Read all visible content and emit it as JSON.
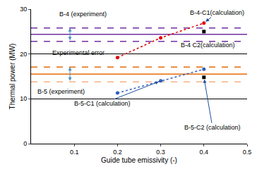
{
  "chart_data": {
    "type": "line",
    "x_label": "Guide tube emissivity (-)",
    "y_label": "Thermal power (MW)",
    "xlim": [
      0,
      0.5
    ],
    "xticks": [
      0.1,
      0.2,
      0.3,
      0.4,
      0.5
    ],
    "ylim": [
      0,
      30
    ],
    "yticks": [
      0,
      10,
      20,
      30
    ],
    "grid": true,
    "series": [
      {
        "x": [
          0,
          0.5
        ],
        "values": [
          24.4,
          24.4
        ],
        "color": "#7030a0",
        "line_style": "solid",
        "marker": "none"
      },
      {
        "x": [
          0,
          0.5
        ],
        "values": [
          25.8,
          25.8
        ],
        "color": "#7030a0",
        "line_style": "dash",
        "marker": "none"
      },
      {
        "x": [
          0,
          0.5
        ],
        "values": [
          22.8,
          22.8
        ],
        "color": "#7030a0",
        "line_style": "dash",
        "marker": "none"
      },
      {
        "x": [
          0,
          0.5
        ],
        "values": [
          15.5,
          15.5
        ],
        "color": "#e36c09",
        "line_style": "solid",
        "marker": "none"
      },
      {
        "x": [
          0,
          0.5
        ],
        "values": [
          17.1,
          17.1
        ],
        "color": "#e36c09",
        "line_style": "dash",
        "marker": "none"
      },
      {
        "x": [
          0,
          0.5
        ],
        "values": [
          13.8,
          13.8
        ],
        "color": "#f4b183",
        "line_style": "dash",
        "marker": "none"
      },
      {
        "x": [
          0.2,
          0.3,
          0.4
        ],
        "values": [
          19.2,
          23.6,
          26.9
        ],
        "color": "#e00000",
        "line_style": "dot",
        "marker": "circle"
      },
      {
        "x": [
          0.4
        ],
        "values": [
          25.0
        ],
        "color": "#000000",
        "line_style": "none",
        "marker": "square"
      },
      {
        "x": [
          0.2,
          0.3,
          0.4
        ],
        "values": [
          11.3,
          14.0,
          16.6
        ],
        "color": "#2e5fbf",
        "line_style": "dot",
        "marker": "circle"
      },
      {
        "x": [
          0.4
        ],
        "values": [
          14.8
        ],
        "color": "#000000",
        "line_style": "none",
        "marker": "square"
      }
    ],
    "annotations": [
      {
        "text": "B-4 (experiment)",
        "x": 0.12,
        "y": 28.9
      },
      {
        "text": "Experimental error",
        "x": 0.11,
        "y": 20.3,
        "span_x": 0.09,
        "spans": [
          [
            22.8,
            25.8
          ],
          [
            13.8,
            17.1
          ]
        ]
      },
      {
        "text": "B-4-C1(calculation)",
        "x": 0.43,
        "y": 29.2,
        "arrow_to": [
          0.4,
          26.9
        ]
      },
      {
        "text": "B-4 C2(calculation)",
        "x": 0.41,
        "y": 22.0
      },
      {
        "text": "B-5 (experiment)",
        "x": 0.07,
        "y": 11.6
      },
      {
        "text": "B-5-C1 (calculation)",
        "x": 0.165,
        "y": 8.9,
        "arrow_to": [
          0.3,
          14.0
        ]
      },
      {
        "text": "B-5-C2 (calculation)",
        "x": 0.42,
        "y": 3.6,
        "arrow_to": [
          0.4,
          14.8
        ]
      }
    ]
  }
}
